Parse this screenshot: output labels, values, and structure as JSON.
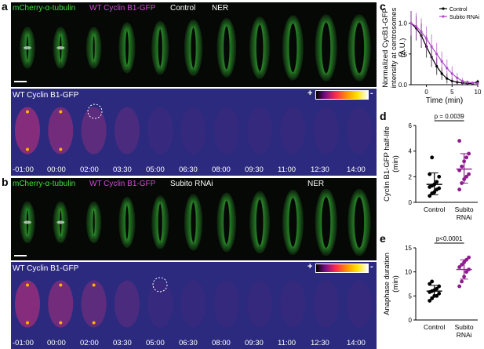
{
  "panels": {
    "a": "a",
    "b": "b",
    "c": "c",
    "d": "d",
    "e": "e"
  },
  "strips": {
    "a_top": {
      "labels": [
        "mCherry-α-tubulin",
        "WT Cyclin B1-GFP",
        "Control",
        "NER"
      ]
    },
    "a_bottom": {
      "label": "WT Cyclin B1-GFP"
    },
    "b_top": {
      "labels": [
        "mCherry-α-tubulin",
        "WT Cyclin B1-GFP",
        "Subito RNAi",
        "NER"
      ]
    },
    "b_bottom": {
      "label": "WT Cyclin B1-GFP"
    },
    "times": [
      "-01:00",
      "00:00",
      "02:00",
      "03:30",
      "05:00",
      "06:30",
      "08:00",
      "09:30",
      "11:00",
      "12:30",
      "14:00"
    ],
    "colorbar_plus": "+",
    "colorbar_minus": "-"
  },
  "colors": {
    "tubulin": "#3be33b",
    "cyclin": "#d946d9",
    "control": "#000000",
    "subito": "#8e1a8e"
  },
  "chart_data": [
    {
      "id": "c",
      "type": "line",
      "ylabel": "Normalized CycB1-GFP intensity at centrosomes (A.U.)",
      "xlabel": "Time (min)",
      "xlim": [
        -3,
        10
      ],
      "ylim": [
        0,
        1.2
      ],
      "xticks": [
        0,
        5,
        10
      ],
      "yticks": [
        0.0,
        0.5,
        1.0
      ],
      "legend": "top-right",
      "series": [
        {
          "name": "Control",
          "color": "#000000",
          "x": [
            -3,
            -2,
            -1,
            0,
            1,
            2,
            3,
            4,
            5,
            6,
            7,
            8,
            9,
            10
          ],
          "y": [
            1.0,
            0.92,
            0.8,
            0.62,
            0.45,
            0.3,
            0.18,
            0.1,
            0.06,
            0.04,
            0.03,
            0.02,
            0.02,
            0.05
          ],
          "err": [
            0.2,
            0.2,
            0.2,
            0.18,
            0.16,
            0.14,
            0.1,
            0.08,
            0.05,
            0.04,
            0.03,
            0.02,
            0.02,
            0.03
          ]
        },
        {
          "name": "Subito RNAi",
          "color": "#b04cc8",
          "x": [
            -3,
            -2,
            -1,
            0,
            1,
            2,
            3,
            4,
            5,
            6,
            7,
            8,
            9,
            10
          ],
          "y": [
            1.0,
            0.95,
            0.86,
            0.75,
            0.62,
            0.5,
            0.38,
            0.27,
            0.18,
            0.11,
            0.06,
            0.04,
            0.03,
            0.02
          ],
          "err": [
            0.2,
            0.22,
            0.22,
            0.2,
            0.2,
            0.18,
            0.16,
            0.14,
            0.12,
            0.08,
            0.05,
            0.03,
            0.02,
            0.02
          ]
        }
      ]
    },
    {
      "id": "d",
      "type": "scatter",
      "ylabel": "Cyclin B1-GFP half-life (min)",
      "categories": [
        "Control",
        "Subito RNAi"
      ],
      "ylim": [
        0,
        6
      ],
      "yticks": [
        0,
        2,
        4,
        6
      ],
      "pvalue": "p = 0.0039",
      "series": [
        {
          "category": "Control",
          "color": "#000000",
          "values": [
            0.5,
            0.7,
            0.8,
            1.0,
            1.1,
            1.2,
            1.3,
            1.4,
            1.6,
            2.0,
            2.2,
            3.5
          ],
          "mean": 1.4,
          "sd_low": 0.6,
          "sd_high": 2.3
        },
        {
          "category": "Subito RNAi",
          "color": "#8e1a8e",
          "values": [
            1.0,
            1.5,
            1.8,
            2.0,
            2.2,
            2.5,
            2.8,
            3.2,
            3.5,
            3.8,
            4.8
          ],
          "mean": 2.6,
          "sd_low": 1.5,
          "sd_high": 3.8
        }
      ]
    },
    {
      "id": "e",
      "type": "scatter",
      "ylabel": "Anaphase duration (min)",
      "categories": [
        "Control",
        "Subito RNAi"
      ],
      "ylim": [
        0,
        15
      ],
      "yticks": [
        0,
        5,
        10,
        15
      ],
      "pvalue": "p<0.0001",
      "series": [
        {
          "category": "Control",
          "color": "#000000",
          "values": [
            4.0,
            4.5,
            5.0,
            5.0,
            5.5,
            5.8,
            6.0,
            6.2,
            6.5,
            7.0,
            7.5,
            8.0
          ],
          "mean": 6.0,
          "sd_low": 4.8,
          "sd_high": 7.2
        },
        {
          "category": "Subito RNAi",
          "color": "#8e1a8e",
          "values": [
            7.0,
            8.0,
            9.0,
            10.0,
            10.5,
            11.0,
            11.5,
            12.0,
            12.5,
            13.0
          ],
          "mean": 10.5,
          "sd_low": 8.5,
          "sd_high": 12.5
        }
      ]
    }
  ]
}
